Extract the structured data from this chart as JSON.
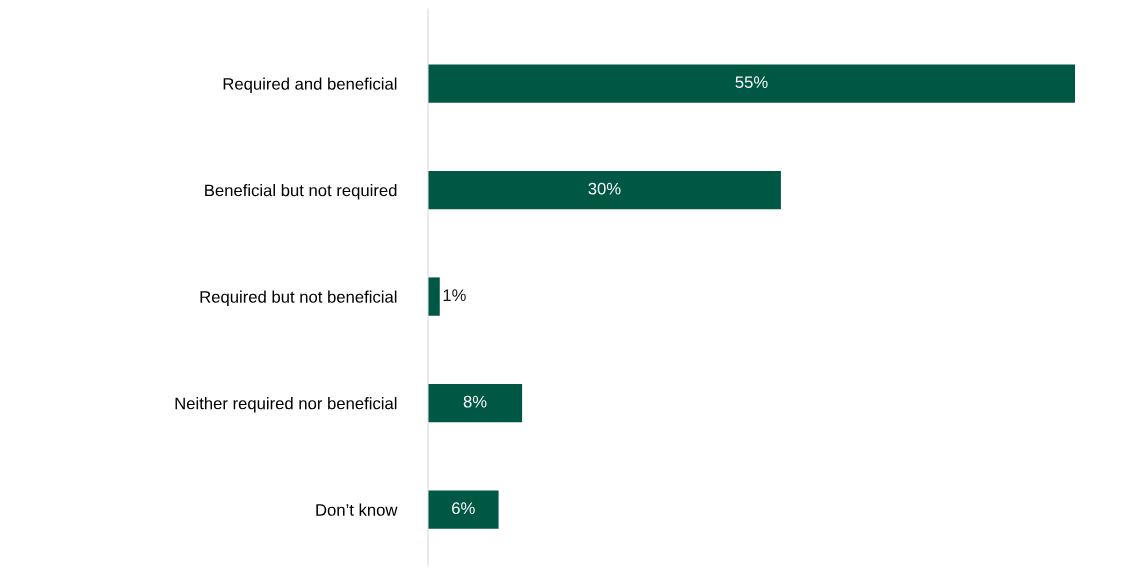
{
  "chart_data": {
    "type": "bar",
    "orientation": "horizontal",
    "categories": [
      "Required and beneficial",
      "Beneficial but not required",
      "Required but not beneficial",
      "Neither required nor beneficial",
      "Don’t know"
    ],
    "values": [
      55,
      30,
      1,
      8,
      6
    ],
    "value_labels": [
      "55%",
      "30%",
      "1%",
      "8%",
      "6%"
    ],
    "color": "#005744",
    "grid": false,
    "legend": false
  }
}
